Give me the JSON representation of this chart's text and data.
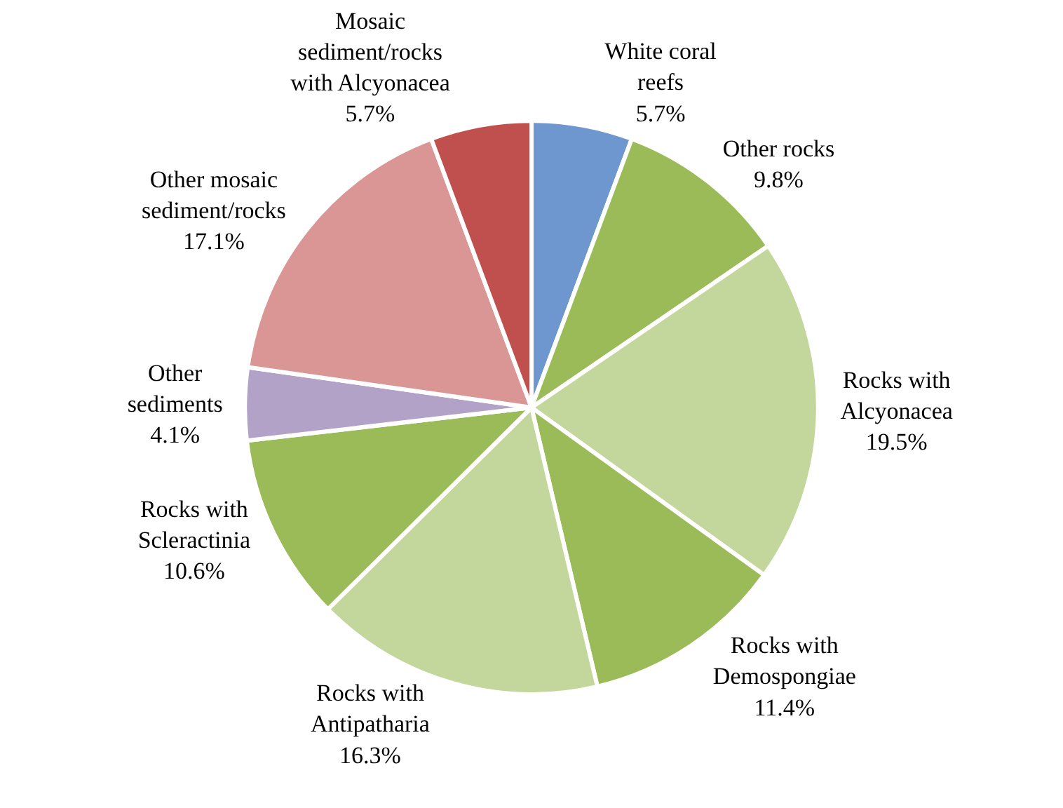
{
  "chart_data": {
    "type": "pie",
    "categories": [
      "White coral\nreefs",
      "Other rocks",
      "Rocks with\nAlcyonacea",
      "Rocks with\nDemospongiae",
      "Rocks with\nAntipatharia",
      "Rocks with\nScleractinia",
      "Other\nsediments",
      "Other mosaic\nsediment/rocks",
      "Mosaic\nsediment/rocks\nwith Alcyonacea"
    ],
    "values": [
      5.7,
      9.8,
      19.5,
      11.4,
      16.3,
      10.6,
      4.1,
      17.1,
      5.7
    ],
    "value_labels": [
      "5.7%",
      "9.8%",
      "19.5%",
      "11.4%",
      "16.3%",
      "10.6%",
      "4.1%",
      "17.1%",
      "5.7%"
    ],
    "colors": [
      "#6f97cf",
      "#9bbb59",
      "#c3d69b",
      "#9bbb59",
      "#c3d69b",
      "#9bbb59",
      "#b3a2c7",
      "#d99694",
      "#c0504d"
    ],
    "legend": false
  }
}
